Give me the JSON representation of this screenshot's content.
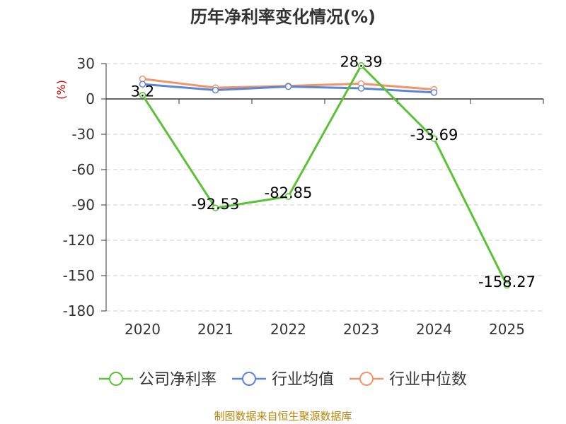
{
  "chart_data": {
    "type": "line",
    "title": "历年净利率变化情况(%)",
    "y_unit": "(%)",
    "categories": [
      "2020",
      "2021",
      "2022",
      "2023",
      "2024",
      "2025"
    ],
    "ylim": [
      -180,
      30
    ],
    "yticks": [
      30,
      0,
      -30,
      -60,
      -90,
      -120,
      -150,
      -180
    ],
    "grid": true,
    "legend_position": "bottom",
    "series": [
      {
        "name": "公司净利率",
        "color": "#5bc236",
        "values": [
          3.2,
          -92.53,
          -82.85,
          28.39,
          -33.69,
          -158.27
        ],
        "labels": [
          "3.2",
          "-92.53",
          "-82.85",
          "28.39",
          "-33.69",
          "-158.27"
        ]
      },
      {
        "name": "行业均值",
        "color": "#5b86d6",
        "values": [
          12.5,
          7.5,
          10.5,
          9.0,
          5.5,
          null
        ]
      },
      {
        "name": "行业中位数",
        "color": "#f0946c",
        "values": [
          17.0,
          9.5,
          11.0,
          13.0,
          8.0,
          null
        ]
      }
    ]
  },
  "footer": {
    "source": "制图数据来自恒生聚源数据库"
  }
}
